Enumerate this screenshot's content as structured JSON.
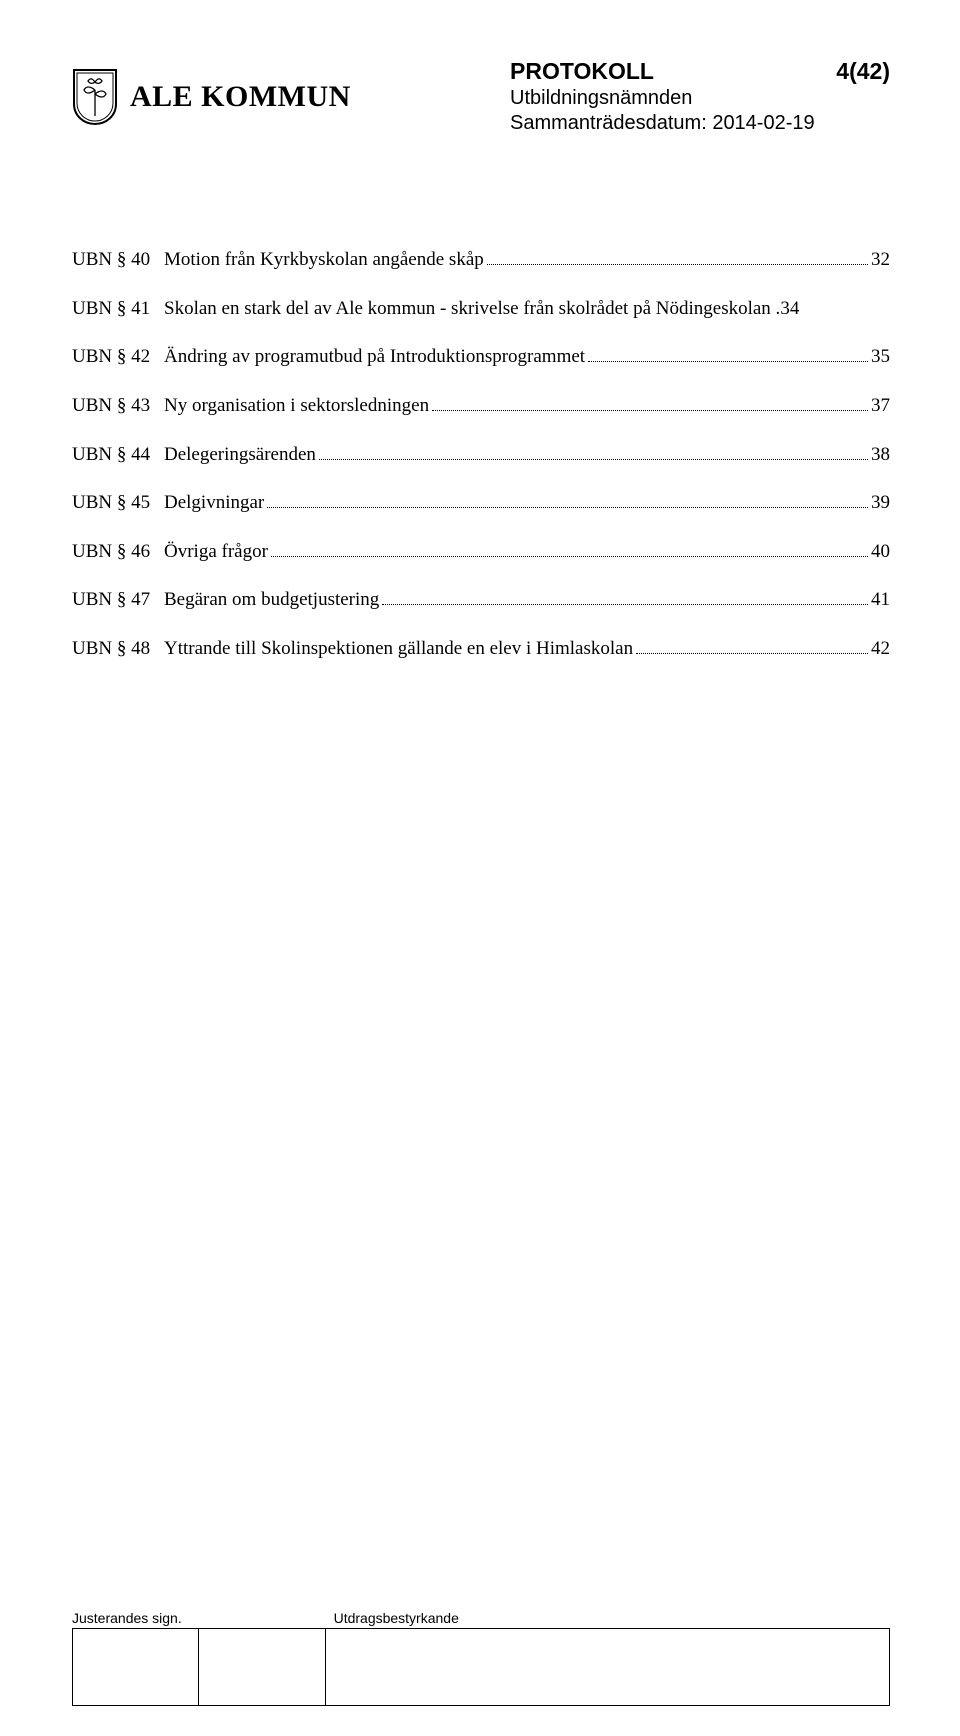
{
  "header": {
    "org_name": "ALE KOMMUN",
    "protokoll_label": "PROTOKOLL",
    "page_indicator": "4(42)",
    "committee": "Utbildningsnämnden",
    "date_line": "Sammanträdesdatum: 2014-02-19"
  },
  "toc": {
    "prefix": "UBN §",
    "items": [
      {
        "num": "40",
        "title": "Motion från Kyrkbyskolan angående skåp",
        "page": "32"
      },
      {
        "num": "41",
        "title_line1": "Skolan en stark del av Ale kommun - skrivelse från skolrådet på Nödingeskolan .",
        "page": "34",
        "wrap": true
      },
      {
        "num": "42",
        "title": "Ändring av programutbud på Introduktionsprogrammet",
        "page": "35"
      },
      {
        "num": "43",
        "title": "Ny organisation i sektorsledningen",
        "page": "37"
      },
      {
        "num": "44",
        "title": "Delegeringsärenden",
        "page": "38"
      },
      {
        "num": "45",
        "title": "Delgivningar",
        "page": "39"
      },
      {
        "num": "46",
        "title": "Övriga frågor",
        "page": "40"
      },
      {
        "num": "47",
        "title": "Begäran om budgetjustering",
        "page": "41"
      },
      {
        "num": "48",
        "title": "Yttrande till Skolinspektionen gällande en elev i Himlaskolan",
        "page": "42"
      }
    ]
  },
  "footer": {
    "left_label": "Justerandes sign.",
    "right_label": "Utdragsbestyrkande"
  },
  "colors": {
    "text": "#000000",
    "background": "#ffffff"
  }
}
